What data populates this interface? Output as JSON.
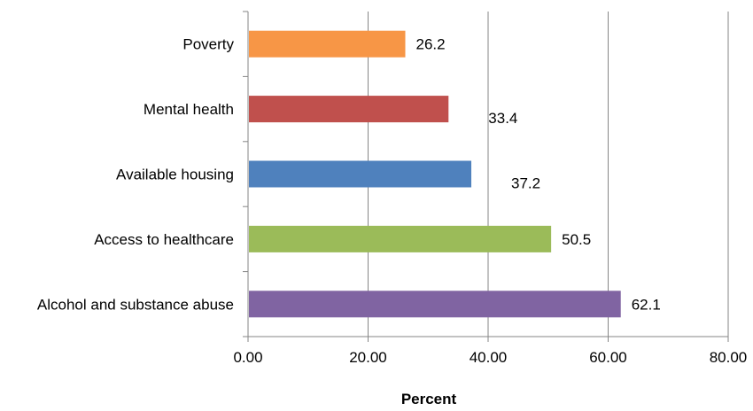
{
  "chart_data": {
    "type": "bar",
    "orientation": "horizontal",
    "categories": [
      "Poverty",
      "Mental health",
      "Available housing",
      "Access to healthcare",
      "Alcohol and substance abuse"
    ],
    "values": [
      26.2,
      33.4,
      37.2,
      50.5,
      62.1
    ],
    "value_labels": [
      "26.2",
      "33.4",
      "37.2",
      "50.5",
      "62.1"
    ],
    "colors": [
      "#F79646",
      "#C0504D",
      "#4F81BD",
      "#9BBB59",
      "#8064A2"
    ],
    "xlabel": "Percent",
    "ylabel": "",
    "title": "",
    "xlim": [
      0,
      80
    ],
    "xticks": [
      0,
      20,
      40,
      60,
      80
    ],
    "xtick_labels": [
      "0.00",
      "20.00",
      "40.00",
      "60.00",
      "80.00"
    ],
    "grid": "vertical-major",
    "legend": "none"
  }
}
